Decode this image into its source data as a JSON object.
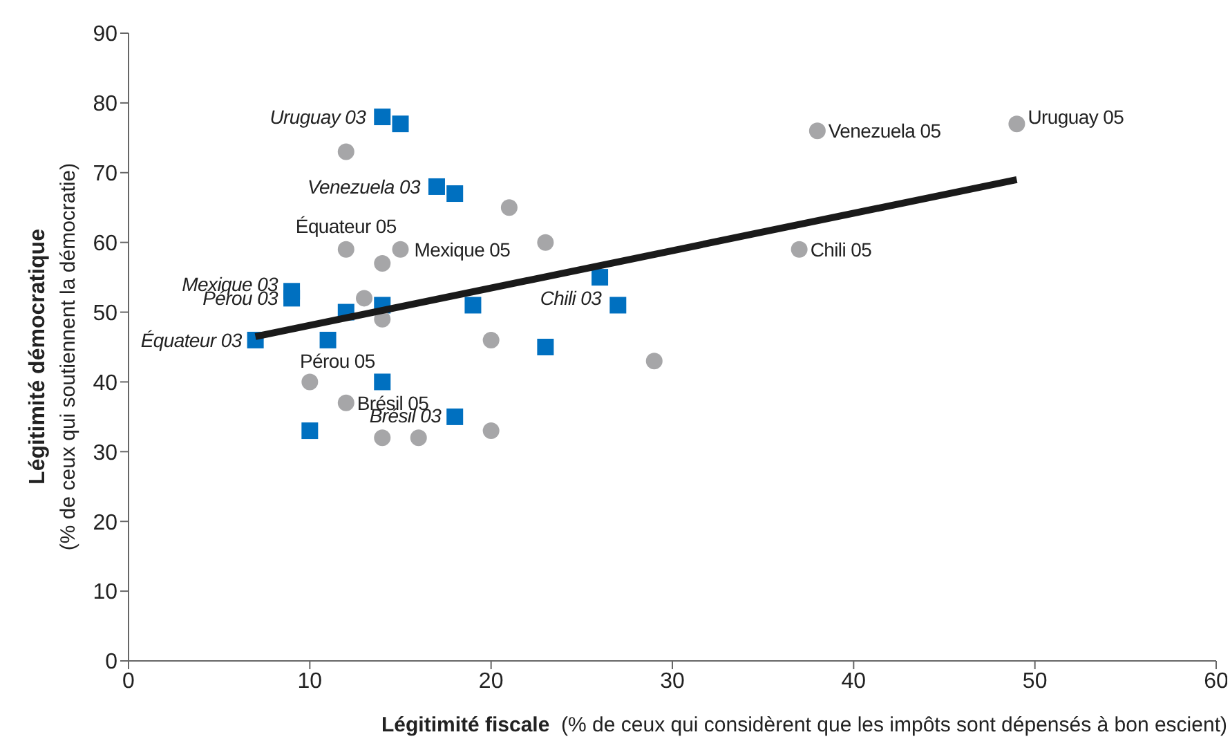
{
  "chart_data": {
    "type": "scatter",
    "xlabel": "Légitimité fiscale  (% de ceux qui considèrent que les impôts sont dépensés à bon escient)",
    "ylabel": "Légitimité démocratique\n(% de ceux qui soutiennent la démocratie)",
    "xlim": [
      0,
      60
    ],
    "xticks": [
      0,
      10,
      20,
      30,
      40,
      50,
      60
    ],
    "ylim": [
      0,
      90
    ],
    "yticks": [
      0,
      10,
      20,
      30,
      40,
      50,
      60,
      70,
      80,
      90
    ],
    "grid": false,
    "legend": false,
    "series": [
      {
        "marker": "square",
        "color": "#0070c0",
        "x": [
          14,
          15,
          17,
          18,
          9,
          9,
          12,
          14,
          19,
          26,
          27,
          7,
          11,
          23,
          14,
          18,
          10
        ],
        "values": [
          78,
          77,
          68,
          67,
          53,
          52,
          50,
          51,
          51,
          55,
          51,
          46,
          46,
          45,
          40,
          35,
          33
        ]
      },
      {
        "marker": "circle",
        "color": "#a6a6a8",
        "x": [
          12,
          21,
          23,
          12,
          15,
          14,
          13,
          14,
          20,
          29,
          10,
          12,
          14,
          16,
          20,
          38,
          49,
          37
        ],
        "values": [
          73,
          65,
          60,
          59,
          59,
          57,
          52,
          49,
          46,
          43,
          40,
          37,
          32,
          32,
          33,
          76,
          77,
          59
        ]
      },
      {
        "type": "line",
        "marker": "none",
        "color": "#1a1a1a",
        "x": [
          7,
          49
        ],
        "values": [
          46.5,
          69
        ]
      }
    ],
    "annotations": [
      {
        "text": "Uruguay 03",
        "x": 14,
        "y": 78
      },
      {
        "text": "Venezuela 03",
        "x": 17,
        "y": 68
      },
      {
        "text": "Équateur 05",
        "x": 12,
        "y": 59
      },
      {
        "text": "Mexique 05",
        "x": 15,
        "y": 59
      },
      {
        "text": "Mexique 03",
        "x": 9,
        "y": 53
      },
      {
        "text": "Pérou 03",
        "x": 9,
        "y": 52
      },
      {
        "text": "Équateur 03",
        "x": 7,
        "y": 46
      },
      {
        "text": "Pérou 05",
        "x": 10,
        "y": 40
      },
      {
        "text": "Brésil 05",
        "x": 12,
        "y": 37
      },
      {
        "text": "Brésil 03",
        "x": 18,
        "y": 35
      },
      {
        "text": "Chili 03",
        "x": 27,
        "y": 51
      },
      {
        "text": "Venezuela 05",
        "x": 38,
        "y": 76
      },
      {
        "text": "Uruguay 05",
        "x": 49,
        "y": 77
      },
      {
        "text": "Chili 05",
        "x": 37,
        "y": 59
      }
    ]
  }
}
